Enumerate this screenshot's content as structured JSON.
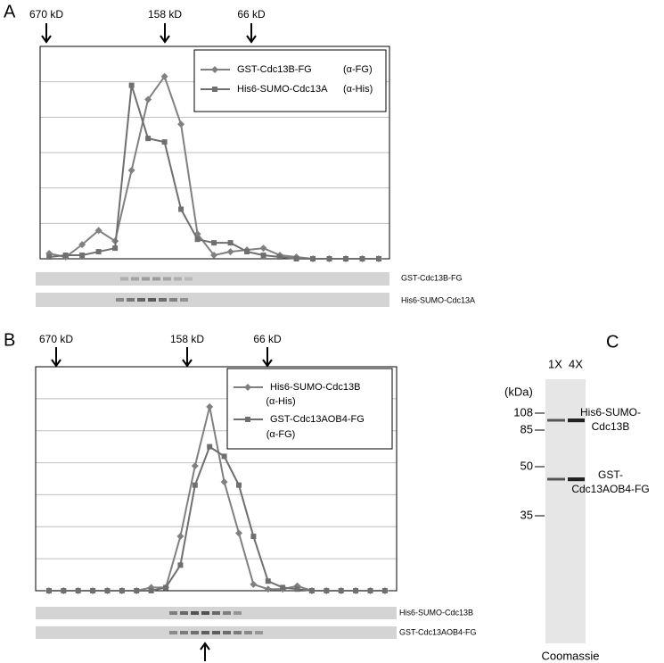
{
  "panels": [
    "A",
    "B",
    "C"
  ],
  "chart_data": [
    {
      "type": "line",
      "xlim": [
        0.45,
        21.65
      ],
      "ylim": [
        0,
        6
      ],
      "yticks": [
        0,
        1,
        2,
        3,
        4,
        5,
        6
      ],
      "grid": true,
      "x": [
        1,
        2,
        3,
        4,
        5,
        6,
        7,
        8,
        9,
        10,
        11,
        12,
        13,
        14,
        15,
        16,
        17,
        18,
        19,
        20,
        21
      ],
      "size_markers": [
        "670 kD",
        "158 kD",
        "66 kD"
      ],
      "blots": [
        "GST-Cdc13B-FG",
        "His6-SUMO-Cdc13A"
      ],
      "series": [
        {
          "name": "GST-Cdc13B-FG",
          "antibody": "(α-FG)",
          "marker": "diamond",
          "color": "#808080",
          "values": [
            0.15,
            0.05,
            0.4,
            0.8,
            0.5,
            2.5,
            4.5,
            5.15,
            3.8,
            0.7,
            0.1,
            0.2,
            0.25,
            0.3,
            0.1,
            0.05,
            0,
            0,
            0,
            0,
            0
          ]
        },
        {
          "name": "His6-SUMO-Cdc13A",
          "antibody": "(α-His)",
          "marker": "square",
          "color": "#6f6f6f",
          "values": [
            0.05,
            0.1,
            0.1,
            0.2,
            0.3,
            4.9,
            3.4,
            3.3,
            1.4,
            0.55,
            0.45,
            0.45,
            0.2,
            0.1,
            0.05,
            0,
            0,
            0,
            0,
            0,
            0
          ]
        }
      ]
    },
    {
      "type": "line",
      "xlim": [
        0.09,
        24.8
      ],
      "ylim": [
        0,
        7
      ],
      "yticks": [
        0,
        1,
        2,
        3,
        4,
        5,
        6,
        7
      ],
      "grid": true,
      "x": [
        1,
        2,
        3,
        4,
        5,
        6,
        7,
        8,
        9,
        10,
        11,
        12,
        13,
        14,
        15,
        16,
        17,
        18,
        19,
        20,
        21,
        22,
        23,
        24
      ],
      "size_markers": [
        "670 kD",
        "158 kD",
        "66 kD"
      ],
      "blots": [
        "His6-SUMO-Cdc13B",
        "GST-Cdc13AOB4-FG"
      ],
      "series": [
        {
          "name": "His6-SUMO-Cdc13B",
          "antibody": "(α-His)",
          "marker": "diamond",
          "color": "#808080",
          "values": [
            0,
            0,
            0,
            0,
            0,
            0,
            0,
            0.1,
            0.1,
            1.7,
            3.9,
            5.75,
            3.4,
            1.8,
            0.2,
            0.05,
            0.05,
            0.15,
            0,
            0,
            0,
            0,
            0,
            0
          ]
        },
        {
          "name": "GST-Cdc13AOB4-FG",
          "antibody": "(α-FG)",
          "marker": "square",
          "color": "#6f6f6f",
          "values": [
            0,
            0,
            0,
            0,
            0,
            0,
            0,
            0,
            0.1,
            0.8,
            3.3,
            4.5,
            4.2,
            3.3,
            1.7,
            0.3,
            0.1,
            0.05,
            0,
            0,
            0,
            0,
            0,
            0
          ]
        }
      ]
    }
  ],
  "gel": {
    "lanes": [
      "1X",
      "4X"
    ],
    "unit": "(kDa)",
    "markers": [
      108,
      85,
      50,
      35
    ],
    "bands": [
      [
        "His6-SUMO-",
        "Cdc13B"
      ],
      [
        "GST-",
        "Cdc13AOB4-FG"
      ]
    ],
    "stain": "Coomassie"
  }
}
